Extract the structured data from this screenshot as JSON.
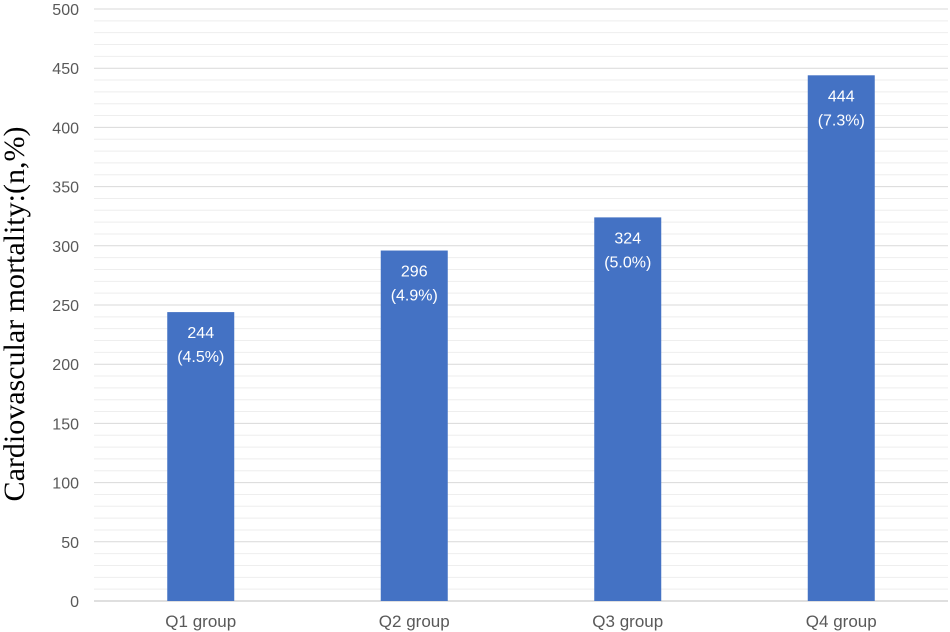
{
  "chart_data": {
    "type": "bar",
    "title": "",
    "xlabel": "",
    "ylabel": "Cardiovascular mortality:(n,%)",
    "categories": [
      "Q1 group",
      "Q2 group",
      "Q3 group",
      "Q4 group"
    ],
    "values": [
      244,
      296,
      324,
      444
    ],
    "data_labels": [
      {
        "count": "244",
        "percent": "(4.5%)"
      },
      {
        "count": "296",
        "percent": "(4.9%)"
      },
      {
        "count": "324",
        "percent": "(5.0%)"
      },
      {
        "count": "444",
        "percent": "(7.3%)"
      }
    ],
    "ylim": [
      0,
      500
    ],
    "yticks": [
      0,
      50,
      100,
      150,
      200,
      250,
      300,
      350,
      400,
      450,
      500
    ],
    "grid": true,
    "minor_grid": true,
    "legend": "none",
    "bar_color": "#4472C4",
    "major_grid_color": "#D9D9D9",
    "minor_grid_color": "#EEEEEE"
  }
}
